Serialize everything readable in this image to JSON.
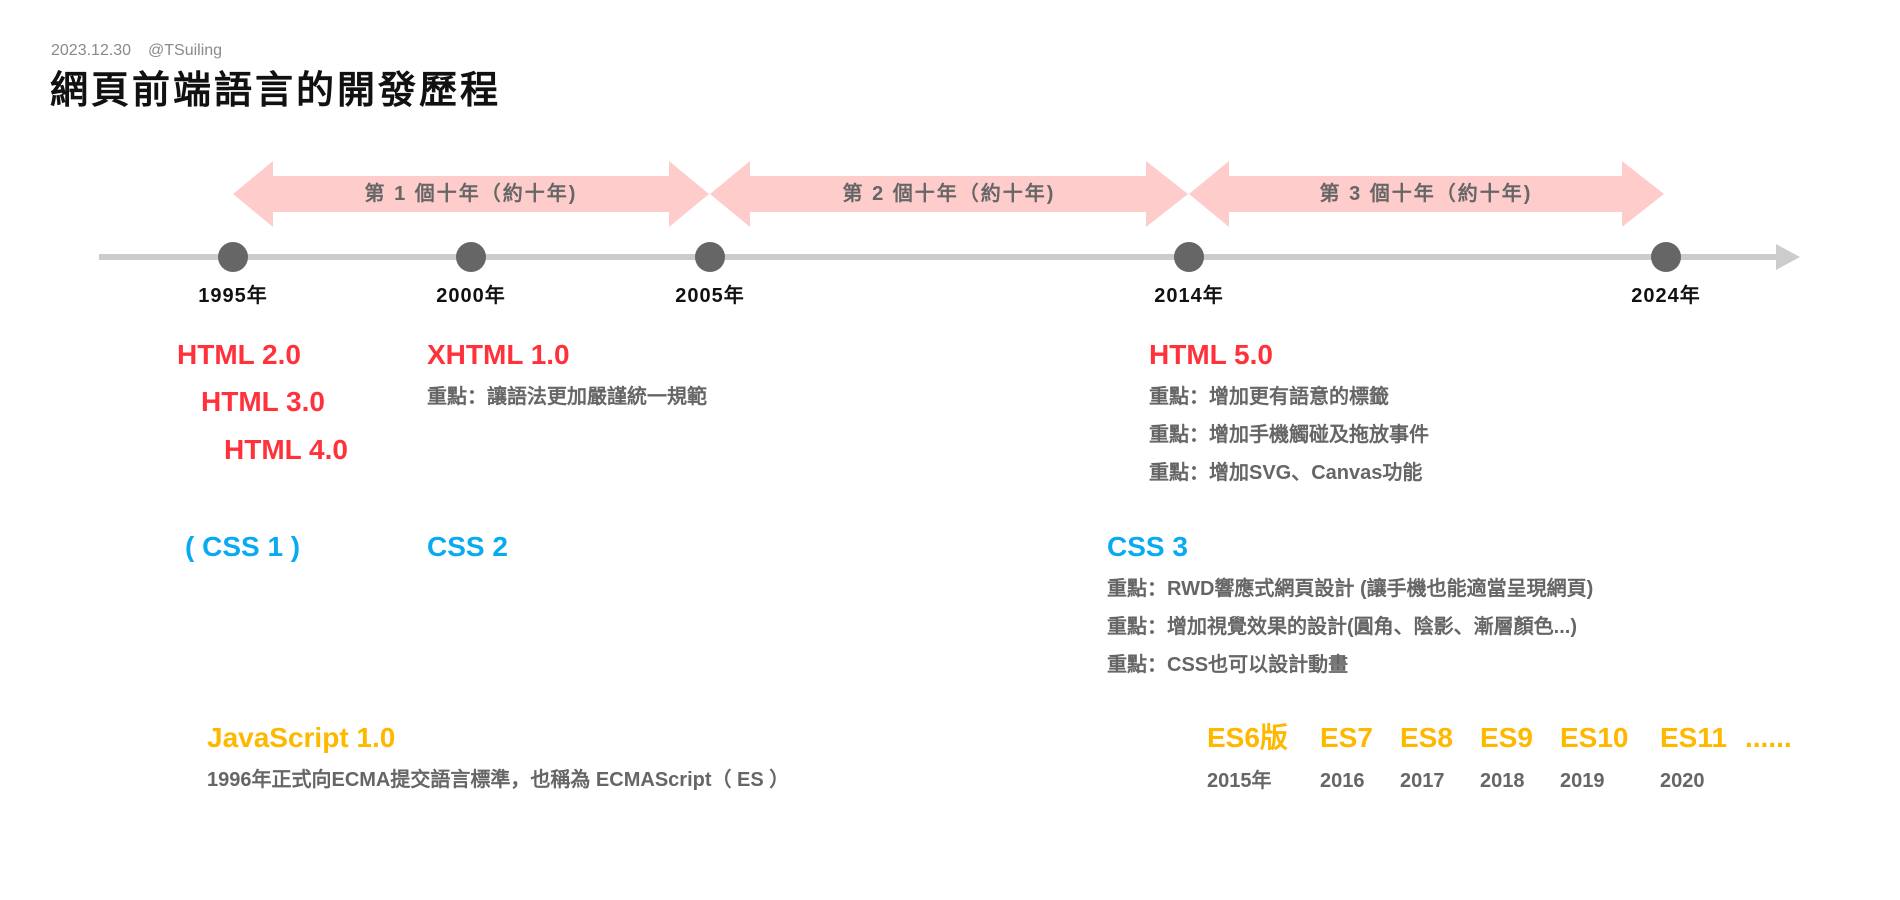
{
  "header": {
    "date": "2023.12.30",
    "author": "@TSuiling",
    "title": "網頁前端語言的開發歷程"
  },
  "colors": {
    "html": "#ff323c",
    "css": "#08aaf2",
    "js": "#ffb800",
    "band": "#ffcccc",
    "axis": "#cccccc",
    "dot": "#666666"
  },
  "decades": [
    "第 1 個十年（約十年)",
    "第 2 個十年（約十年)",
    "第 3 個十年（約十年)"
  ],
  "years": [
    "1995年",
    "2000年",
    "2005年",
    "2014年",
    "2024年"
  ],
  "html": {
    "v2": "HTML 2.0",
    "v3": "HTML 3.0",
    "v4": "HTML 4.0",
    "xhtml": "XHTML 1.0",
    "xhtml_note": "重點：讓語法更加嚴謹統一規範",
    "v5": "HTML 5.0",
    "v5_notes": [
      "重點：增加更有語意的標籤",
      "重點：增加手機觸碰及拖放事件",
      "重點：增加SVG、Canvas功能"
    ]
  },
  "css": {
    "v1": "( CSS 1 )",
    "v2": "CSS 2",
    "v3": "CSS 3",
    "v3_notes": [
      "重點：RWD響應式網頁設計 (讓手機也能適當呈現網頁)",
      "重點：增加視覺效果的設計(圓角、陰影、漸層顏色...)",
      "重點：CSS也可以設計動畫"
    ]
  },
  "js": {
    "v1": "JavaScript 1.0",
    "v1_note": "1996年正式向ECMA提交語言標準，也稱為 ECMAScript（ ES ）",
    "es": [
      {
        "name": "ES6版",
        "year": "2015年"
      },
      {
        "name": "ES7",
        "year": "2016"
      },
      {
        "name": "ES8",
        "year": "2017"
      },
      {
        "name": "ES9",
        "year": "2018"
      },
      {
        "name": "ES10",
        "year": "2019"
      },
      {
        "name": "ES11",
        "year": "2020"
      },
      {
        "name": "......",
        "year": ""
      }
    ]
  }
}
